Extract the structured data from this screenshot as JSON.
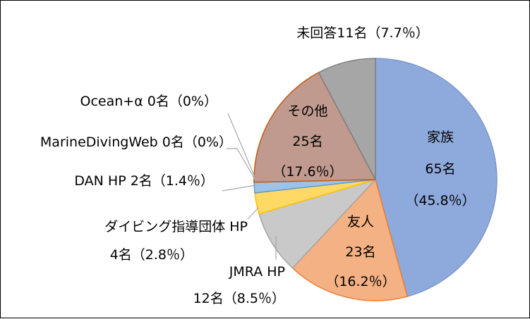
{
  "chart_data": {
    "type": "pie",
    "colors": {
      "family": "#8EA9DB",
      "friend": "#F4B183",
      "jmra": "#C9C9C9",
      "diving_org": "#FFD966",
      "dan": "#9DC3E6",
      "other": "#C09A8E",
      "no_answer": "#A6A6A6"
    },
    "slices": [
      {
        "key": "family",
        "value": 65,
        "color": "#8EA9DB",
        "edge": "#7F97C9",
        "label_lines": [
          "家族",
          "65名",
          "（45.8％）"
        ]
      },
      {
        "key": "friend",
        "value": 23,
        "color": "#F4B183",
        "edge": "#ED7D31",
        "label_lines": [
          "友人",
          "23名",
          "（16.2％）"
        ]
      },
      {
        "key": "jmra",
        "value": 12,
        "color": "#C9C9C9",
        "edge": "#A5A5A5",
        "label_lines": [
          "JMRA HP",
          "12名（8.5％）"
        ]
      },
      {
        "key": "diving_org",
        "value": 4,
        "color": "#FFD966",
        "edge": "#FFC000",
        "label_lines": [
          "ダイビング指導団体 HP",
          "4名（2.8％）"
        ]
      },
      {
        "key": "dan",
        "value": 2,
        "color": "#9DC3E6",
        "edge": "#5B9BD5",
        "label_lines": [
          "DAN HP 2名（1.4％）"
        ]
      },
      {
        "key": "marine_web",
        "value": 0,
        "color": "#70AD47",
        "edge": "#70AD47",
        "label_lines": [
          "MarineDivingWeb 0名（0%）"
        ]
      },
      {
        "key": "ocean",
        "value": 0,
        "color": "#4472C4",
        "edge": "#4472C4",
        "label_lines": [
          "Ocean+α 0名（0%）"
        ]
      },
      {
        "key": "other",
        "value": 25,
        "color": "#C09A8E",
        "edge": "#C55A11",
        "label_lines": [
          "その他",
          "25名",
          "（17.6％）"
        ]
      },
      {
        "key": "no_answer",
        "value": 11,
        "color": "#A6A6A6",
        "edge": "#7F7F7F",
        "label_lines": [
          "未回答11名（7.7％）"
        ]
      }
    ]
  }
}
